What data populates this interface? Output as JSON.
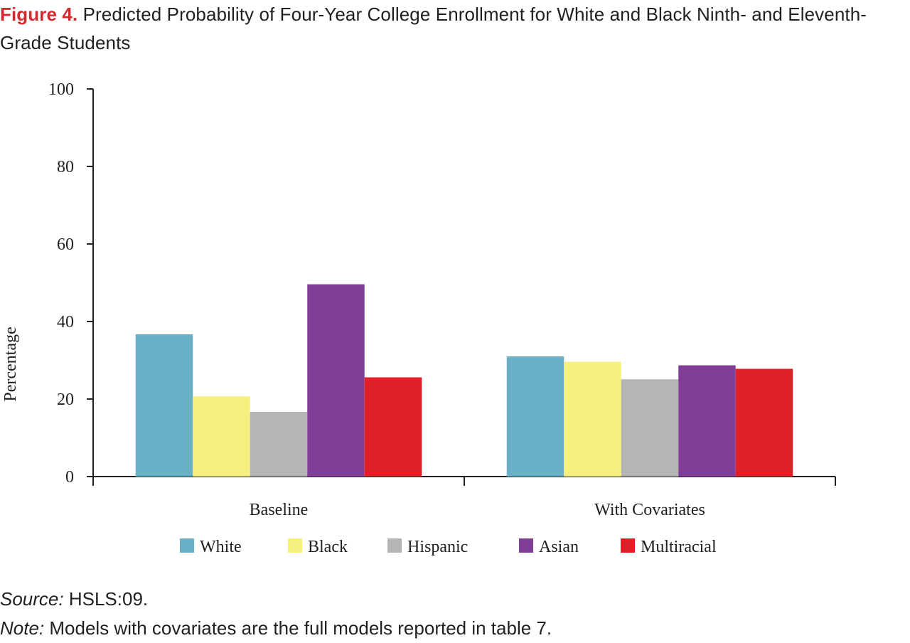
{
  "title": {
    "label": "Figure 4.",
    "text": "Predicted Probability of Four-Year College Enrollment for White and Black Ninth- and Eleventh-Grade Students"
  },
  "chart_data": {
    "type": "bar",
    "categories": [
      "Baseline",
      "With Covariates"
    ],
    "series": [
      {
        "name": "White",
        "color": "#6ab1c8",
        "values": [
          36.7,
          31.0
        ]
      },
      {
        "name": "Black",
        "color": "#f7f07e",
        "values": [
          20.7,
          29.6
        ]
      },
      {
        "name": "Hispanic",
        "color": "#b4b5b4",
        "values": [
          16.7,
          25.1
        ]
      },
      {
        "name": "Asian",
        "color": "#803e98",
        "values": [
          49.6,
          28.7
        ]
      },
      {
        "name": "Multiracial",
        "color": "#e02027",
        "values": [
          25.6,
          27.8
        ]
      }
    ],
    "ylabel": "Percentage",
    "xlabel": "",
    "ylim": [
      0,
      100
    ],
    "yticks": [
      0,
      20,
      40,
      60,
      80,
      100
    ],
    "legend_position": "bottom",
    "grid": false
  },
  "notes": {
    "source_label": "Source:",
    "source_text": "HSLS:09.",
    "note_label": "Note:",
    "note_text": "Models with covariates are the full models reported in table 7."
  }
}
